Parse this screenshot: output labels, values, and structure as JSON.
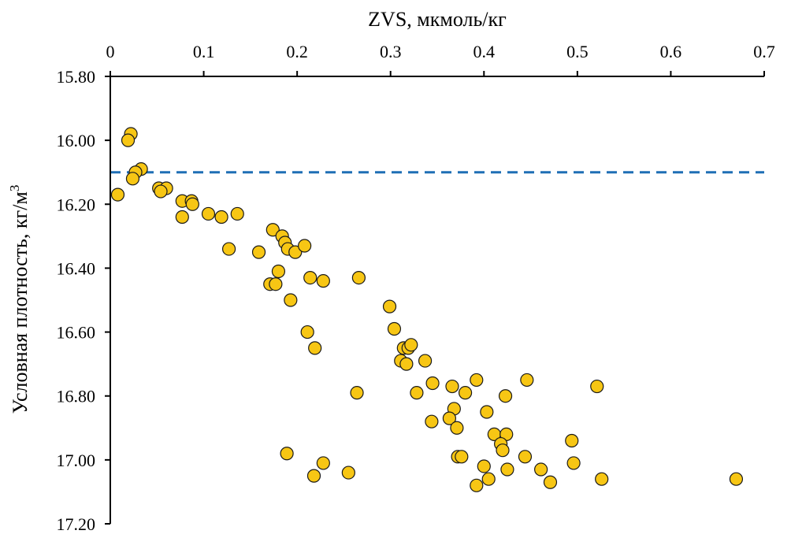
{
  "chart_data": {
    "type": "scatter",
    "title": "",
    "xlabel": "ZVS, мкмоль/кг",
    "ylabel_main": "Условная плотность, кг/м",
    "ylabel_sup": "3",
    "xlim": [
      0,
      0.7
    ],
    "ylim": [
      15.8,
      17.2
    ],
    "y_inverted": true,
    "x_axis_position": "top",
    "x_ticks": [
      0,
      0.1,
      0.2,
      0.3,
      0.4,
      0.5,
      0.6,
      0.7
    ],
    "x_tick_labels": [
      "0",
      "0.1",
      "0.2",
      "0.3",
      "0.4",
      "0.5",
      "0.6",
      "0.7"
    ],
    "y_ticks": [
      15.8,
      16.0,
      16.2,
      16.4,
      16.6,
      16.8,
      17.0,
      17.2
    ],
    "y_tick_labels": [
      "15.80",
      "16.00",
      "16.20",
      "16.40",
      "16.60",
      "16.80",
      "17.00",
      "17.20"
    ],
    "reference_line": {
      "y": 16.1,
      "style": "dashed",
      "color": "#1f6fb5"
    },
    "marker": {
      "fill": "#f7c614",
      "stroke": "#1a1a1a"
    },
    "points": [
      {
        "x": 0.022,
        "y": 15.98
      },
      {
        "x": 0.019,
        "y": 16.0
      },
      {
        "x": 0.033,
        "y": 16.09
      },
      {
        "x": 0.027,
        "y": 16.1
      },
      {
        "x": 0.024,
        "y": 16.12
      },
      {
        "x": 0.008,
        "y": 16.17
      },
      {
        "x": 0.052,
        "y": 16.15
      },
      {
        "x": 0.06,
        "y": 16.15
      },
      {
        "x": 0.054,
        "y": 16.16
      },
      {
        "x": 0.077,
        "y": 16.19
      },
      {
        "x": 0.087,
        "y": 16.19
      },
      {
        "x": 0.088,
        "y": 16.2
      },
      {
        "x": 0.077,
        "y": 16.24
      },
      {
        "x": 0.105,
        "y": 16.23
      },
      {
        "x": 0.119,
        "y": 16.24
      },
      {
        "x": 0.136,
        "y": 16.23
      },
      {
        "x": 0.127,
        "y": 16.34
      },
      {
        "x": 0.159,
        "y": 16.35
      },
      {
        "x": 0.174,
        "y": 16.28
      },
      {
        "x": 0.184,
        "y": 16.3
      },
      {
        "x": 0.187,
        "y": 16.32
      },
      {
        "x": 0.19,
        "y": 16.34
      },
      {
        "x": 0.198,
        "y": 16.35
      },
      {
        "x": 0.208,
        "y": 16.33
      },
      {
        "x": 0.171,
        "y": 16.45
      },
      {
        "x": 0.177,
        "y": 16.45
      },
      {
        "x": 0.18,
        "y": 16.41
      },
      {
        "x": 0.214,
        "y": 16.43
      },
      {
        "x": 0.228,
        "y": 16.44
      },
      {
        "x": 0.193,
        "y": 16.5
      },
      {
        "x": 0.266,
        "y": 16.43
      },
      {
        "x": 0.211,
        "y": 16.6
      },
      {
        "x": 0.219,
        "y": 16.65
      },
      {
        "x": 0.299,
        "y": 16.52
      },
      {
        "x": 0.304,
        "y": 16.59
      },
      {
        "x": 0.314,
        "y": 16.65
      },
      {
        "x": 0.319,
        "y": 16.65
      },
      {
        "x": 0.322,
        "y": 16.64
      },
      {
        "x": 0.311,
        "y": 16.69
      },
      {
        "x": 0.317,
        "y": 16.7
      },
      {
        "x": 0.337,
        "y": 16.69
      },
      {
        "x": 0.264,
        "y": 16.79
      },
      {
        "x": 0.328,
        "y": 16.79
      },
      {
        "x": 0.345,
        "y": 16.76
      },
      {
        "x": 0.366,
        "y": 16.77
      },
      {
        "x": 0.38,
        "y": 16.79
      },
      {
        "x": 0.392,
        "y": 16.75
      },
      {
        "x": 0.423,
        "y": 16.8
      },
      {
        "x": 0.446,
        "y": 16.75
      },
      {
        "x": 0.521,
        "y": 16.77
      },
      {
        "x": 0.368,
        "y": 16.84
      },
      {
        "x": 0.363,
        "y": 16.87
      },
      {
        "x": 0.344,
        "y": 16.88
      },
      {
        "x": 0.371,
        "y": 16.9
      },
      {
        "x": 0.403,
        "y": 16.85
      },
      {
        "x": 0.411,
        "y": 16.92
      },
      {
        "x": 0.424,
        "y": 16.92
      },
      {
        "x": 0.418,
        "y": 16.95
      },
      {
        "x": 0.42,
        "y": 16.97
      },
      {
        "x": 0.372,
        "y": 16.99
      },
      {
        "x": 0.376,
        "y": 16.99
      },
      {
        "x": 0.444,
        "y": 16.99
      },
      {
        "x": 0.494,
        "y": 16.94
      },
      {
        "x": 0.189,
        "y": 16.98
      },
      {
        "x": 0.228,
        "y": 17.01
      },
      {
        "x": 0.218,
        "y": 17.05
      },
      {
        "x": 0.255,
        "y": 17.04
      },
      {
        "x": 0.4,
        "y": 17.02
      },
      {
        "x": 0.405,
        "y": 17.06
      },
      {
        "x": 0.392,
        "y": 17.08
      },
      {
        "x": 0.425,
        "y": 17.03
      },
      {
        "x": 0.461,
        "y": 17.03
      },
      {
        "x": 0.471,
        "y": 17.07
      },
      {
        "x": 0.496,
        "y": 17.01
      },
      {
        "x": 0.526,
        "y": 17.06
      },
      {
        "x": 0.67,
        "y": 17.06
      }
    ]
  }
}
